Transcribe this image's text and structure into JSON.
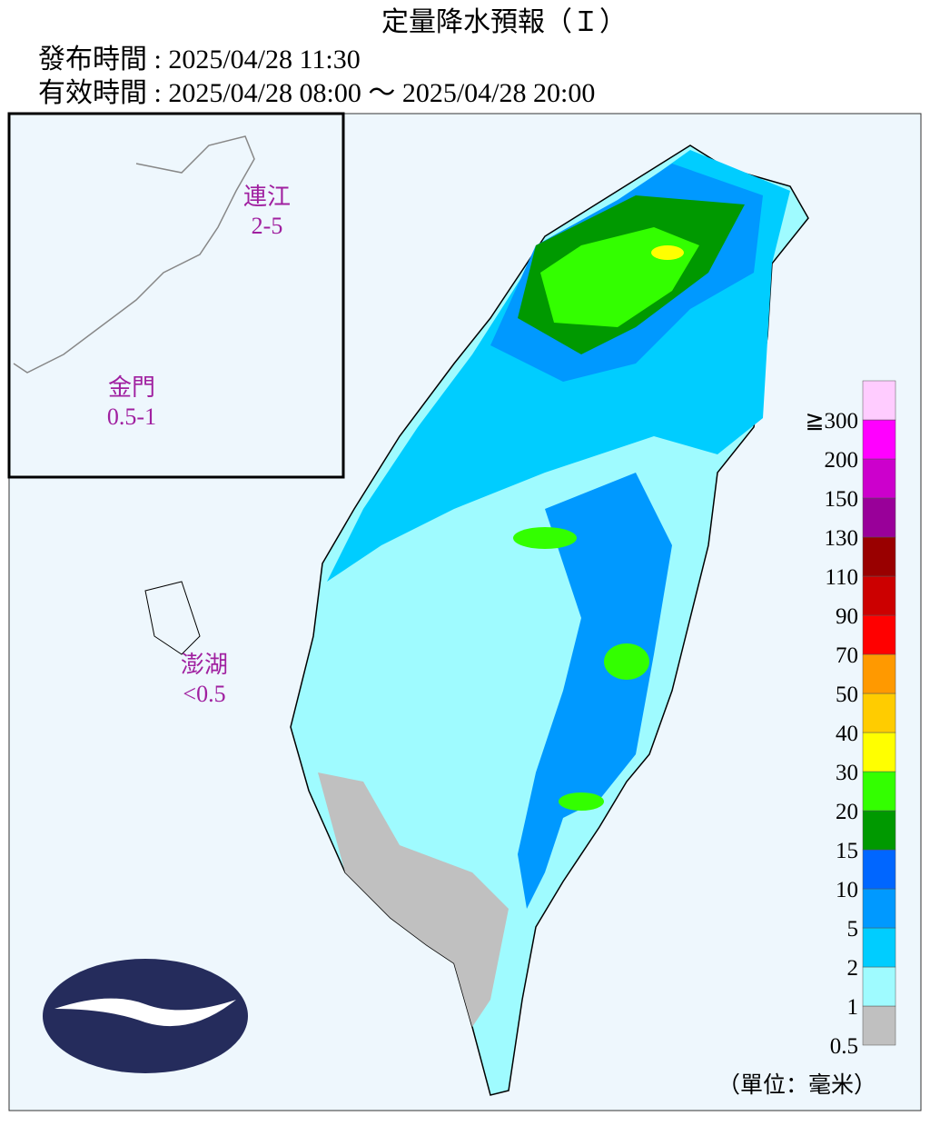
{
  "header": {
    "title": "定量降水預報（Ｉ）",
    "issued": "發布時間 : 2025/04/28 11:30",
    "valid": "有效時間 : 2025/04/28 08:00 ～ 2025/04/28 20:00"
  },
  "regions": [
    {
      "name": "連江",
      "value": "2-5"
    },
    {
      "name": "金門",
      "value": "0.5-1"
    },
    {
      "name": "澎湖",
      "value": "<0.5"
    }
  ],
  "legend": {
    "levels": [
      {
        "label": "0.5",
        "color": "#c0c0c0"
      },
      {
        "label": "1",
        "color": "#9ffbff"
      },
      {
        "label": "2",
        "color": "#00cdff"
      },
      {
        "label": "5",
        "color": "#0099ff"
      },
      {
        "label": "10",
        "color": "#0066ff"
      },
      {
        "label": "15",
        "color": "#009900"
      },
      {
        "label": "20",
        "color": "#33ff00"
      },
      {
        "label": "30",
        "color": "#ffff00"
      },
      {
        "label": "40",
        "color": "#ffcc00"
      },
      {
        "label": "50",
        "color": "#ff9900"
      },
      {
        "label": "70",
        "color": "#ff0000"
      },
      {
        "label": "90",
        "color": "#cc0000"
      },
      {
        "label": "110",
        "color": "#990000"
      },
      {
        "label": "130",
        "color": "#990099"
      },
      {
        "label": "150",
        "color": "#cc00cc"
      },
      {
        "label": "200",
        "color": "#ff00ff"
      },
      {
        "label": "≧300",
        "color": "#ffccff"
      }
    ],
    "unit": "（單位：毫米）"
  }
}
